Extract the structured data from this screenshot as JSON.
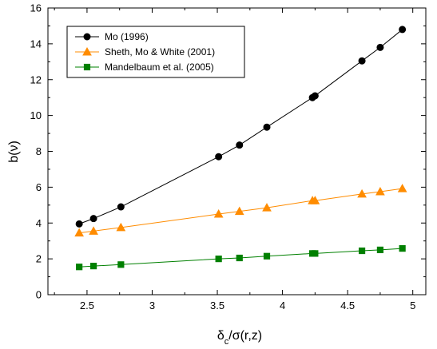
{
  "chart_data": {
    "type": "line",
    "xlabel": {
      "main": "δ",
      "sub": "c",
      "rest": "/σ(r,z)"
    },
    "ylabel": "b(ν)",
    "xlim": [
      2.2,
      5.1
    ],
    "ylim": [
      0,
      16
    ],
    "xticks": [
      2.5,
      3,
      3.5,
      4,
      4.5,
      5
    ],
    "xtick_labels": [
      "2.5",
      "3",
      "3.5",
      "4",
      "4.5",
      "5"
    ],
    "yticks": [
      0,
      2,
      4,
      6,
      8,
      10,
      12,
      14,
      16
    ],
    "ytick_labels": [
      "0",
      "2",
      "4",
      "6",
      "8",
      "10",
      "12",
      "14",
      "16"
    ],
    "grid": false,
    "legend_position": "top-left",
    "series": [
      {
        "name": "Mo (1996)",
        "color": "#000000",
        "marker": "circle",
        "x": [
          2.44,
          2.55,
          2.76,
          3.51,
          3.67,
          3.88,
          4.23,
          4.25,
          4.61,
          4.75,
          4.92
        ],
        "y": [
          3.95,
          4.25,
          4.9,
          7.7,
          8.35,
          9.35,
          11.0,
          11.1,
          13.05,
          13.8,
          14.8
        ]
      },
      {
        "name": "Sheth, Mo & White (2001)",
        "color": "#FF8C00",
        "marker": "triangle",
        "x": [
          2.44,
          2.55,
          2.76,
          3.51,
          3.67,
          3.88,
          4.23,
          4.25,
          4.61,
          4.75,
          4.92
        ],
        "y": [
          3.45,
          3.55,
          3.75,
          4.5,
          4.65,
          4.85,
          5.25,
          5.25,
          5.62,
          5.75,
          5.92
        ]
      },
      {
        "name": "Mandelbaum et al. (2005)",
        "color": "#008000",
        "marker": "square",
        "x": [
          2.44,
          2.55,
          2.76,
          3.51,
          3.67,
          3.88,
          4.23,
          4.25,
          4.61,
          4.75,
          4.92
        ],
        "y": [
          1.55,
          1.6,
          1.68,
          2.0,
          2.05,
          2.15,
          2.3,
          2.3,
          2.45,
          2.5,
          2.58
        ]
      }
    ]
  }
}
